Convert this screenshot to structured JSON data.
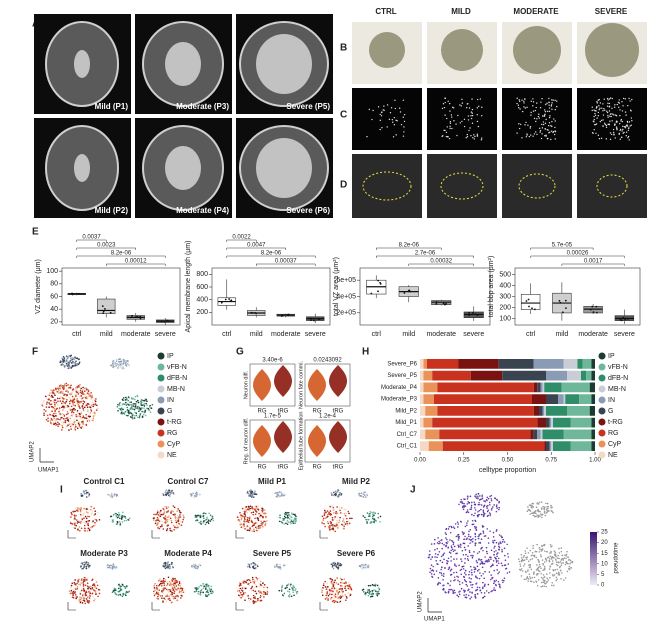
{
  "panels": {
    "A": {
      "label": "A",
      "captions": [
        "Mild (P1)",
        "Moderate (P3)",
        "Severe (P5)",
        "Mild (P2)",
        "Moderate (P4)",
        "Severe (P6)"
      ]
    },
    "B": {
      "label": "B",
      "columns": [
        "CTRL",
        "MILD",
        "MODERATE",
        "SEVERE"
      ]
    },
    "C": {
      "label": "C"
    },
    "D": {
      "label": "D"
    },
    "E": {
      "label": "E"
    },
    "F": {
      "label": "F",
      "x_label": "UMAP1",
      "y_label": "UMAP2"
    },
    "G": {
      "label": "G",
      "categories": [
        "RG",
        "tRG"
      ],
      "plots": [
        {
          "y_label": "Neuron diff.",
          "p_value": "3.40e-6"
        },
        {
          "y_label": "Neuron fate commi.",
          "p_value": "0.0243092"
        },
        {
          "y_label": "Reg. of neuron diff.",
          "p_value": "1.7e-5"
        },
        {
          "y_label": "Epithelial tube formation",
          "p_value": "1.2e-4"
        }
      ]
    },
    "H": {
      "label": "H"
    },
    "I": {
      "label": "I",
      "titles": [
        "Control C1",
        "Control C7",
        "Mild P1",
        "Mild P2",
        "Moderate P3",
        "Moderate P4",
        "Severe P5",
        "Severe P6"
      ]
    },
    "J": {
      "label": "J",
      "x_label": "UMAP1",
      "y_label": "UMAP2",
      "colorbar_title": "pseudotime",
      "colorbar_ticks": [
        0,
        5,
        10,
        15,
        20,
        25
      ]
    }
  },
  "chart_data": [
    {
      "type": "box",
      "y_label": "VZ diameter (μm)",
      "categories": [
        "ctrl",
        "mild",
        "moderate",
        "severe"
      ],
      "colors": [
        "#ffffff",
        "#cfcfcf",
        "#9a9a9a",
        "#555555"
      ],
      "boxes": [
        {
          "min": 62,
          "q1": 63,
          "median": 64,
          "q3": 65,
          "max": 66
        },
        {
          "min": 27,
          "q1": 33,
          "median": 38,
          "q3": 56,
          "max": 60
        },
        {
          "min": 20,
          "q1": 24,
          "median": 27,
          "q3": 30,
          "max": 34
        },
        {
          "min": 15,
          "q1": 19,
          "median": 21,
          "q3": 23,
          "max": 26
        }
      ],
      "ylim": [
        15,
        105
      ],
      "yticks": [
        20,
        40,
        60,
        80,
        100
      ],
      "comparisons": [
        "0.0037",
        "0.0023",
        "8.2e-06",
        "0.00012"
      ]
    },
    {
      "type": "box",
      "y_label": "Apical membrane length (μm)",
      "categories": [
        "ctrl",
        "mild",
        "moderate",
        "severe"
      ],
      "colors": [
        "#ffffff",
        "#cfcfcf",
        "#9a9a9a",
        "#555555"
      ],
      "boxes": [
        {
          "min": 240,
          "q1": 310,
          "median": 370,
          "q3": 430,
          "max": 720
        },
        {
          "min": 120,
          "q1": 150,
          "median": 190,
          "q3": 230,
          "max": 280
        },
        {
          "min": 120,
          "q1": 140,
          "median": 155,
          "q3": 170,
          "max": 180
        },
        {
          "min": 30,
          "q1": 70,
          "median": 100,
          "q3": 130,
          "max": 180
        }
      ],
      "ylim": [
        0,
        900
      ],
      "yticks": [
        200,
        400,
        600,
        800
      ],
      "comparisons": [
        "0.0022",
        "0.0047",
        "8.2e-06",
        "0.00037"
      ]
    },
    {
      "type": "box",
      "y_label": "total VZ area (μm²)",
      "categories": [
        "ctrl",
        "mild",
        "moderate",
        "severe"
      ],
      "colors": [
        "#ffffff",
        "#cfcfcf",
        "#9a9a9a",
        "#555555"
      ],
      "boxes": [
        {
          "min": 380000,
          "q1": 430000,
          "median": 520000,
          "q3": 600000,
          "max": 660000
        },
        {
          "min": 330000,
          "q1": 400000,
          "median": 460000,
          "q3": 520000,
          "max": 540000
        },
        {
          "min": 290000,
          "q1": 300000,
          "median": 330000,
          "q3": 350000,
          "max": 360000
        },
        {
          "min": 100000,
          "q1": 140000,
          "median": 180000,
          "q3": 210000,
          "max": 280000
        }
      ],
      "ylim": [
        50000,
        750000
      ],
      "yticks": [
        {
          "value": 200000,
          "label": "2e+05"
        },
        {
          "value": 400000,
          "label": "4e+05"
        },
        {
          "value": 600000,
          "label": "6e+05"
        }
      ],
      "comparisons": [
        "8.2e-06",
        "2.7e-06",
        "0.00032"
      ]
    },
    {
      "type": "box",
      "y_label": "total bbp area (μm²)",
      "categories": [
        "ctrl",
        "mild",
        "moderate",
        "severe"
      ],
      "colors": [
        "#ffffff",
        "#cfcfcf",
        "#9a9a9a",
        "#555555"
      ],
      "boxes": [
        {
          "min": 140,
          "q1": 180,
          "median": 240,
          "q3": 320,
          "max": 420
        },
        {
          "min": 80,
          "q1": 150,
          "median": 240,
          "q3": 330,
          "max": 430
        },
        {
          "min": 140,
          "q1": 150,
          "median": 185,
          "q3": 210,
          "max": 230
        },
        {
          "min": 50,
          "q1": 80,
          "median": 100,
          "q3": 125,
          "max": 180
        }
      ],
      "ylim": [
        40,
        560
      ],
      "yticks": [
        100,
        200,
        300,
        400,
        500
      ],
      "comparisons": [
        "5.7e-05",
        "0.00026",
        "0.0017"
      ]
    },
    {
      "type": "stacked-barh",
      "x_label": "celltype proportion",
      "categories": [
        "Severe_P6",
        "Severe_P5",
        "Moderate_P4",
        "Moderate_P3",
        "Mild_P2",
        "Mild_P1",
        "Ctrl_C7",
        "Ctrl_C1"
      ],
      "xlim": [
        0,
        1
      ],
      "xticks": [
        {
          "value": 0,
          "label": "0.00"
        },
        {
          "value": 0.25,
          "label": "0.25"
        },
        {
          "value": 0.5,
          "label": "0.50"
        },
        {
          "value": 0.75,
          "label": "0.75"
        },
        {
          "value": 1,
          "label": "1.00"
        }
      ],
      "series": [
        {
          "name": "IP",
          "color": "#1b3b33",
          "values": [
            0.02,
            0.02,
            0.03,
            0.02,
            0.03,
            0.02,
            0.02,
            0.02
          ]
        },
        {
          "name": "vFB-N",
          "color": "#6fb79a",
          "values": [
            0.05,
            0.03,
            0.16,
            0.07,
            0.13,
            0.12,
            0.16,
            0.12
          ]
        },
        {
          "name": "dFB-N",
          "color": "#2f8d6a",
          "values": [
            0.03,
            0.03,
            0.1,
            0.08,
            0.12,
            0.1,
            0.12,
            0.1
          ]
        },
        {
          "name": "MB-N",
          "color": "#c9ced6",
          "values": [
            0.08,
            0.08,
            0.01,
            0.01,
            0.01,
            0.01,
            0.01,
            0.01
          ]
        },
        {
          "name": "IN",
          "color": "#8a9bb5",
          "values": [
            0.17,
            0.12,
            0.01,
            0.03,
            0.01,
            0.01,
            0.02,
            0.01
          ]
        },
        {
          "name": "G",
          "color": "#3a4450",
          "values": [
            0.2,
            0.25,
            0.02,
            0.07,
            0.02,
            0.02,
            0.02,
            0.02
          ]
        },
        {
          "name": "t-RG",
          "color": "#7a1212",
          "values": [
            0.23,
            0.18,
            0.02,
            0.08,
            0.03,
            0.05,
            0.02,
            0.01
          ]
        },
        {
          "name": "RG",
          "color": "#c8321e",
          "values": [
            0.18,
            0.22,
            0.55,
            0.56,
            0.55,
            0.6,
            0.52,
            0.58
          ]
        },
        {
          "name": "CyP",
          "color": "#e9925a",
          "values": [
            0.02,
            0.05,
            0.08,
            0.06,
            0.07,
            0.05,
            0.08,
            0.08
          ]
        },
        {
          "name": "NE",
          "color": "#f6d9c4",
          "values": [
            0.02,
            0.02,
            0.02,
            0.02,
            0.03,
            0.02,
            0.03,
            0.05
          ]
        }
      ]
    }
  ]
}
